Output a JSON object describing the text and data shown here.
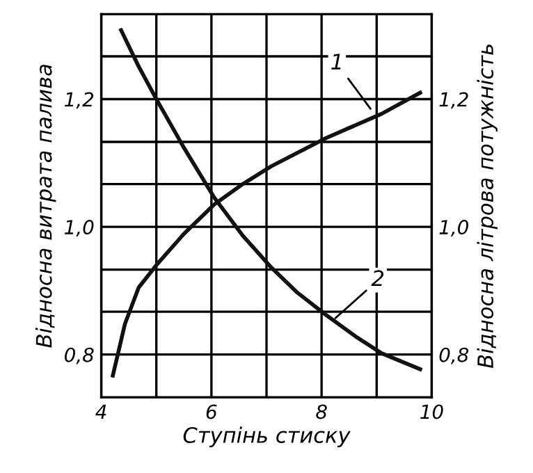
{
  "chart_data": {
    "type": "line",
    "xlabel": "Ступінь стиску",
    "ylabel": "Відносна витрата палива",
    "y2label": "Відносна літрова потужність",
    "xlim": [
      4,
      10
    ],
    "xticks": [
      4,
      {
        "value": 5,
        "label": null
      },
      6,
      {
        "value": 7,
        "label": null
      },
      8,
      {
        "value": 9,
        "label": null
      },
      10
    ],
    "ylim": [
      0.733,
      1.333
    ],
    "yticks": [
      {
        "value": 0.8,
        "label": "0,8"
      },
      {
        "value": 0.867,
        "label": null
      },
      {
        "value": 0.933,
        "label": null
      },
      {
        "value": 1.0,
        "label": "1,0"
      },
      {
        "value": 1.067,
        "label": null
      },
      {
        "value": 1.133,
        "label": null
      },
      {
        "value": 1.2,
        "label": "1,2"
      },
      {
        "value": 1.267,
        "label": null
      }
    ],
    "y2lim": [
      0.733,
      1.333
    ],
    "y2ticks": [
      {
        "value": 0.8,
        "label": "0,8"
      },
      {
        "value": 1.0,
        "label": "1,0"
      },
      {
        "value": 1.2,
        "label": "1,2"
      }
    ],
    "grid": true,
    "line_style": "solid",
    "marker": "none",
    "series": [
      {
        "color": "#111111",
        "x": [
          4.21,
          4.43,
          4.68,
          5.0,
          5.5,
          6.05,
          6.57,
          7.09,
          8.08,
          9.09,
          9.79
        ],
        "values": [
          0.767,
          0.848,
          0.905,
          0.94,
          0.989,
          1.035,
          1.067,
          1.095,
          1.139,
          1.177,
          1.21
        ]
      },
      {
        "color": "#111111",
        "x": [
          4.36,
          4.68,
          5.0,
          5.5,
          6.05,
          6.57,
          7.09,
          7.56,
          8.08,
          8.64,
          9.09,
          9.79
        ],
        "values": [
          1.308,
          1.251,
          1.2,
          1.124,
          1.046,
          0.986,
          0.936,
          0.897,
          0.862,
          0.827,
          0.802,
          0.777
        ]
      }
    ],
    "annotations": [
      {
        "text": "1",
        "x": 8.93,
        "y": 1.18
      },
      {
        "text": "2",
        "x": 8.2,
        "y": 0.853
      }
    ]
  }
}
